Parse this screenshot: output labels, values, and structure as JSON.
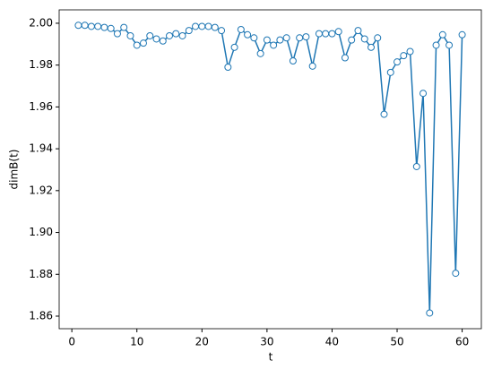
{
  "chart_data": {
    "type": "line",
    "xlabel": "t",
    "ylabel": "dimB(t)",
    "color": "#1f77b4",
    "marker_fill": "#ffffff",
    "x": [
      1,
      2,
      3,
      4,
      5,
      6,
      7,
      8,
      9,
      10,
      11,
      12,
      13,
      14,
      15,
      16,
      17,
      18,
      19,
      20,
      21,
      22,
      23,
      24,
      25,
      26,
      27,
      28,
      29,
      30,
      31,
      32,
      33,
      34,
      35,
      36,
      37,
      38,
      39,
      40,
      41,
      42,
      43,
      44,
      45,
      46,
      47,
      48,
      49,
      50,
      51,
      52,
      53,
      54,
      55,
      56,
      57,
      58,
      59,
      60
    ],
    "values": [
      1.999,
      1.999,
      1.9985,
      1.9985,
      1.998,
      1.9975,
      1.995,
      1.998,
      1.994,
      1.9895,
      1.9905,
      1.994,
      1.9925,
      1.9915,
      1.994,
      1.995,
      1.994,
      1.9965,
      1.9985,
      1.9985,
      1.9985,
      1.998,
      1.9965,
      1.979,
      1.9885,
      1.997,
      1.9945,
      1.993,
      1.9855,
      1.992,
      1.9895,
      1.992,
      1.993,
      1.982,
      1.993,
      1.9935,
      1.9795,
      1.995,
      1.995,
      1.995,
      1.996,
      1.9835,
      1.992,
      1.9965,
      1.9925,
      1.9885,
      1.993,
      1.9565,
      1.9765,
      1.9815,
      1.9845,
      1.9865,
      1.9315,
      1.9665,
      1.8615,
      1.9895,
      1.9945,
      1.9895,
      1.8805,
      1.9945
    ],
    "xlim": [
      -1.95,
      62.95
    ],
    "xticks": [
      0,
      10,
      20,
      30,
      40,
      50,
      60
    ],
    "ylim": [
      1.854,
      2.0064
    ],
    "yticks": [
      1.86,
      1.88,
      {
        "value": 1.9,
        "label": "1.90"
      },
      1.92,
      1.94,
      1.96,
      1.98,
      {
        "value": 2,
        "label": "2.00"
      }
    ]
  }
}
